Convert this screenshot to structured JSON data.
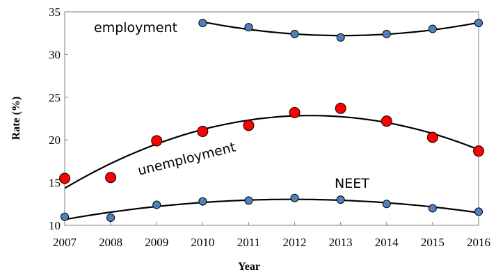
{
  "chart_data": {
    "type": "scatter",
    "xlabel": "Year",
    "ylabel": "Rate (%)",
    "xlim": [
      2007,
      2016
    ],
    "ylim": [
      10,
      35
    ],
    "x_ticks": [
      "2007",
      "2008",
      "2009",
      "2010",
      "2011",
      "2012",
      "2013",
      "2014",
      "2015",
      "2016"
    ],
    "y_ticks": [
      "10",
      "15",
      "20",
      "25",
      "30",
      "35"
    ],
    "grid": false,
    "series": [
      {
        "name": "employment",
        "marker_color": "#4f81bd",
        "x": [
          2010,
          2011,
          2012,
          2013,
          2014,
          2015,
          2016
        ],
        "y": [
          33.7,
          33.2,
          32.4,
          32.0,
          32.4,
          33.0,
          33.7
        ],
        "trend": "polynomial"
      },
      {
        "name": "unemployment",
        "marker_color": "#ff0000",
        "x": [
          2007,
          2008,
          2009,
          2010,
          2011,
          2012,
          2013,
          2014,
          2015,
          2016
        ],
        "y": [
          15.5,
          15.6,
          19.9,
          21.0,
          21.7,
          23.2,
          23.7,
          22.2,
          20.3,
          18.7
        ],
        "trend": "polynomial"
      },
      {
        "name": "NEET",
        "marker_color": "#4f81bd",
        "x": [
          2007,
          2008,
          2009,
          2010,
          2011,
          2012,
          2013,
          2014,
          2015,
          2016
        ],
        "y": [
          11.0,
          10.9,
          12.4,
          12.8,
          12.9,
          13.2,
          13.0,
          12.5,
          12.0,
          11.6
        ],
        "trend": "polynomial"
      }
    ]
  }
}
